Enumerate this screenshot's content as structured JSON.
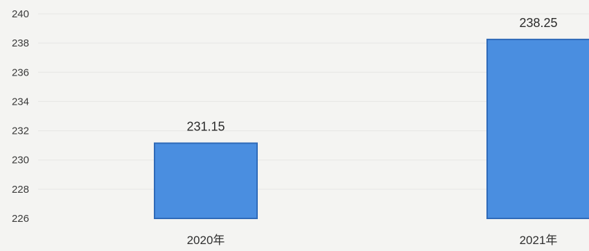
{
  "chart_data": {
    "type": "bar",
    "title": "",
    "xlabel": "",
    "ylabel": "",
    "categories": [
      "2020年",
      "2021年"
    ],
    "values": [
      231.15,
      238.25
    ],
    "data_labels": [
      "231.15",
      "238.25"
    ],
    "ylim": [
      226,
      240
    ],
    "yticks": [
      226,
      228,
      230,
      232,
      234,
      236,
      238,
      240
    ],
    "grid": true,
    "legend": "none",
    "colors": {
      "bar_fill": "#4a8ee0",
      "bar_edge": "#2f6ab8",
      "background": "#f4f4f2",
      "text": "#333333"
    }
  }
}
